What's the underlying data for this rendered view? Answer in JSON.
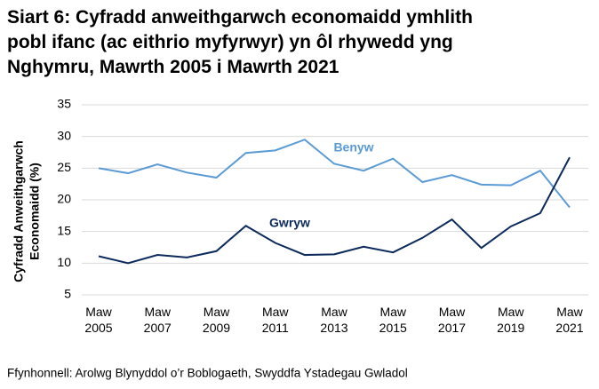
{
  "chart_data": {
    "type": "line",
    "title": [
      "Siart 6: Cyfradd anweithgarwch economaidd ymhlith",
      "pobl ifanc (ac eithrio myfyrwyr) yn ôl rhywedd yng",
      "Nghymru, Mawrth 2005 i Mawrth 2021"
    ],
    "y_label": [
      "Cyfradd Anweithgarwch",
      "Economaidd (%)"
    ],
    "categories": [
      "Maw 2005",
      null,
      "Maw 2007",
      null,
      "Maw 2009",
      null,
      "Maw 2011",
      null,
      "Maw 2013",
      null,
      "Maw 2015",
      null,
      "Maw 2017",
      null,
      "Maw 2019",
      null,
      "Maw 2021"
    ],
    "series": [
      {
        "name": "Benyw",
        "color": "#5b9bd5",
        "values": [
          25.0,
          24.2,
          25.6,
          24.3,
          23.5,
          27.4,
          27.8,
          29.5,
          25.7,
          24.6,
          26.5,
          22.8,
          23.9,
          22.4,
          22.3,
          24.6,
          18.8
        ]
      },
      {
        "name": "Gwryw",
        "color": "#0b2a5b",
        "values": [
          11.1,
          10.0,
          11.3,
          10.9,
          11.9,
          15.9,
          13.2,
          11.3,
          11.4,
          12.6,
          11.7,
          14.0,
          16.9,
          12.4,
          15.8,
          17.9,
          26.7
        ]
      }
    ],
    "ylim": [
      5,
      35
    ],
    "yticks": [
      5,
      10,
      15,
      20,
      25,
      30,
      35
    ],
    "grid": true,
    "source": "Ffynhonnell: Arolwg Blynyddol o’r Boblogaeth, Swyddfa Ystadegau Gwladol"
  }
}
